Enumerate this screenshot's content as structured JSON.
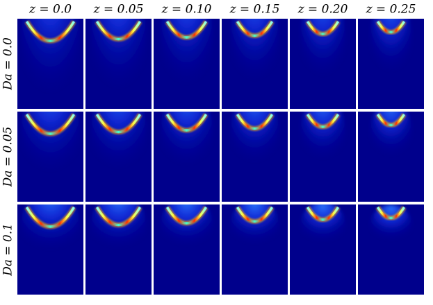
{
  "column_labels": [
    "z = 0.0",
    "z = 0.05",
    "z = 0.10",
    "z = 0.15",
    "z = 0.20",
    "z = 0.25"
  ],
  "row_labels": [
    "Da = 0.0",
    "Da = 0.05",
    "Da = 0.1"
  ]
}
